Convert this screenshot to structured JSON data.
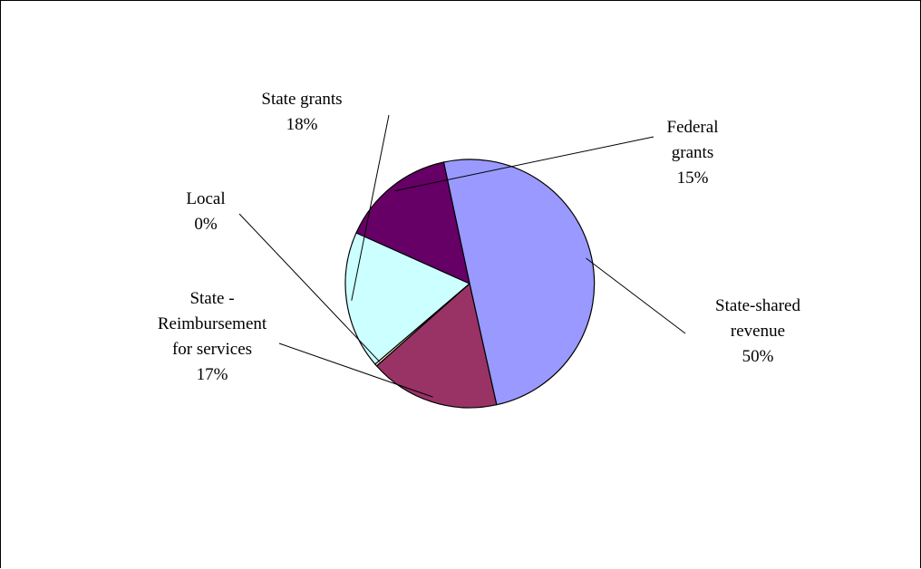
{
  "chart_data": {
    "type": "pie",
    "slices": [
      {
        "label_lines": [
          "State-shared",
          "revenue"
        ],
        "percent_label": "50%",
        "value": 50,
        "color": "#9999FF"
      },
      {
        "label_lines": [
          "State -",
          "Reimbursement",
          "for services"
        ],
        "percent_label": "17%",
        "value": 17,
        "color": "#993366"
      },
      {
        "label_lines": [
          "Local"
        ],
        "percent_label": "0%",
        "value": 0.3,
        "color": "#FFFFCC"
      },
      {
        "label_lines": [
          "State grants"
        ],
        "percent_label": "18%",
        "value": 18,
        "color": "#CCFFFF"
      },
      {
        "label_lines": [
          "Federal",
          "grants"
        ],
        "percent_label": "15%",
        "value": 15,
        "color": "#660066"
      }
    ],
    "legend": "none",
    "outline_color": "#000000"
  }
}
